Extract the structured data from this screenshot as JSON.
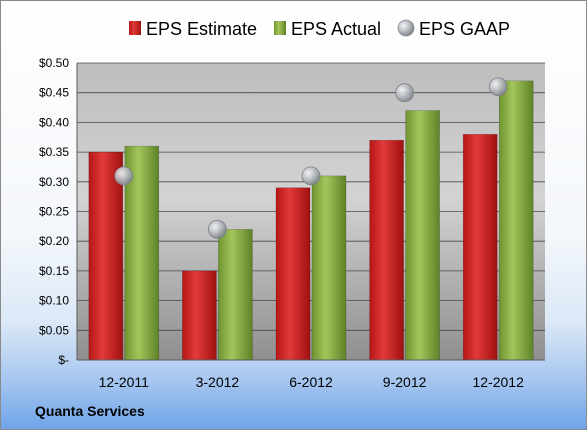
{
  "company": "Quanta Services",
  "colors": {
    "estimate": "#d42a2a",
    "actual": "#8fb34a",
    "gaap": "#b9bcc4"
  },
  "chart_data": {
    "type": "bar",
    "categories": [
      "12-2011",
      "3-2012",
      "6-2012",
      "9-2012",
      "12-2012"
    ],
    "series": [
      {
        "name": "EPS Estimate",
        "type": "bar",
        "values": [
          0.35,
          0.15,
          0.29,
          0.37,
          0.38
        ]
      },
      {
        "name": "EPS Actual",
        "type": "bar",
        "values": [
          0.36,
          0.22,
          0.31,
          0.42,
          0.47
        ]
      },
      {
        "name": "EPS GAAP",
        "type": "scatter",
        "values": [
          0.31,
          0.22,
          0.31,
          0.45,
          0.46
        ]
      }
    ],
    "ylim": [
      0,
      0.5
    ],
    "yticks": [
      0,
      0.05,
      0.1,
      0.15,
      0.2,
      0.25,
      0.3,
      0.35,
      0.4,
      0.45,
      0.5
    ],
    "ytick_labels": [
      "$-",
      "$0.05",
      "$0.10",
      "$0.15",
      "$0.20",
      "$0.25",
      "$0.30",
      "$0.35",
      "$0.40",
      "$0.45",
      "$0.50"
    ],
    "grid": true,
    "legend": "top"
  }
}
